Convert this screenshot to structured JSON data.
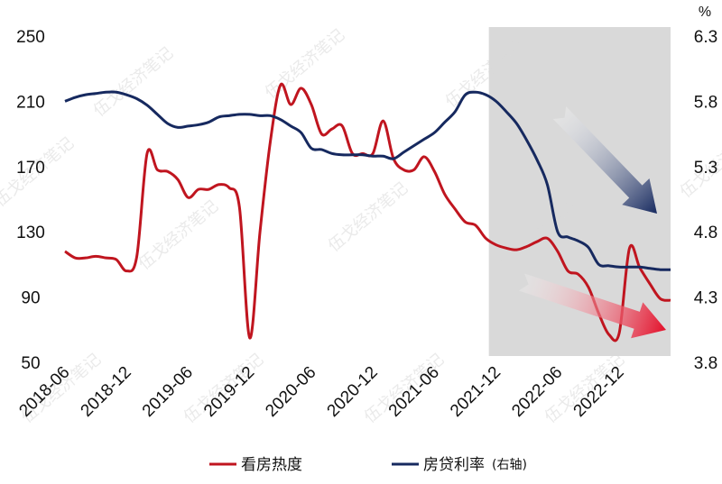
{
  "chart_data": {
    "type": "line",
    "title": "",
    "unit_right": "%",
    "x": [
      "2018-06",
      "2018-07",
      "2018-08",
      "2018-09",
      "2018-10",
      "2018-11",
      "2018-12",
      "2019-01",
      "2019-02",
      "2019-03",
      "2019-04",
      "2019-05",
      "2019-06",
      "2019-07",
      "2019-08",
      "2019-09",
      "2019-10",
      "2019-11",
      "2019-12",
      "2020-01",
      "2020-02",
      "2020-03",
      "2020-04",
      "2020-05",
      "2020-06",
      "2020-07",
      "2020-08",
      "2020-09",
      "2020-10",
      "2020-11",
      "2020-12",
      "2021-01",
      "2021-02",
      "2021-03",
      "2021-04",
      "2021-05",
      "2021-06",
      "2021-07",
      "2021-08",
      "2021-09",
      "2021-10",
      "2021-11",
      "2021-12",
      "2022-01",
      "2022-02",
      "2022-03",
      "2022-04",
      "2022-05",
      "2022-06",
      "2022-07",
      "2022-08",
      "2022-09",
      "2022-10",
      "2022-11",
      "2022-12",
      "2023-01",
      "2023-02",
      "2023-03",
      "2023-04",
      "2023-05"
    ],
    "xtick_labels": [
      "2018-06",
      "2018-12",
      "2019-06",
      "2019-12",
      "2020-06",
      "2020-12",
      "2021-06",
      "2021-12",
      "2022-06",
      "2022-12"
    ],
    "y_left": {
      "ticks": [
        50,
        90,
        130,
        170,
        210,
        250
      ],
      "ylim": [
        50,
        250
      ]
    },
    "y_right": {
      "ticks": [
        3.8,
        4.3,
        4.8,
        5.3,
        5.8,
        6.3
      ],
      "ylim": [
        3.8,
        6.3
      ]
    },
    "series": [
      {
        "name": "看房热度",
        "axis": "left",
        "color": "#c0151f",
        "values": [
          118,
          114,
          114,
          115,
          114,
          113,
          106,
          115,
          178,
          168,
          167,
          162,
          151,
          156,
          156,
          159,
          157,
          145,
          65,
          130,
          185,
          220,
          208,
          218,
          208,
          190,
          193,
          195,
          178,
          178,
          178,
          198,
          175,
          168,
          168,
          176,
          167,
          153,
          144,
          136,
          134,
          126,
          122,
          120,
          119,
          121,
          124,
          126,
          118,
          106,
          104,
          96,
          80,
          67,
          68,
          120,
          108,
          98,
          89,
          88
        ]
      },
      {
        "name": "房贷利率",
        "axis": "right",
        "color": "#16295f",
        "values": [
          5.8,
          5.83,
          5.85,
          5.86,
          5.87,
          5.87,
          5.85,
          5.82,
          5.77,
          5.7,
          5.63,
          5.6,
          5.61,
          5.62,
          5.64,
          5.68,
          5.69,
          5.7,
          5.7,
          5.69,
          5.69,
          5.66,
          5.61,
          5.56,
          5.44,
          5.43,
          5.4,
          5.39,
          5.39,
          5.39,
          5.38,
          5.38,
          5.36,
          5.41,
          5.46,
          5.51,
          5.56,
          5.64,
          5.72,
          5.85,
          5.87,
          5.85,
          5.8,
          5.72,
          5.63,
          5.5,
          5.35,
          5.16,
          4.8,
          4.76,
          4.73,
          4.68,
          4.55,
          4.54,
          4.53,
          4.53,
          4.53,
          4.52,
          4.51,
          4.51
        ]
      }
    ],
    "shaded_region": {
      "from": "2021-12",
      "to": "2023-05",
      "color": "#d9d9d9"
    },
    "annotations": [
      {
        "type": "arrow",
        "color": "#16295f",
        "description": "downward trend arrow on mortgage rate"
      },
      {
        "type": "arrow",
        "color": "#e3102a",
        "description": "downward trend arrow on viewing heat"
      }
    ],
    "legend": {
      "placement": "bottom",
      "entries": [
        {
          "label": "看房热度",
          "color": "#c0151f"
        },
        {
          "label": "房贷利率",
          "note": "(右轴)",
          "color": "#16295f"
        }
      ]
    },
    "watermark": "伍戈经济笔记",
    "grid": false
  }
}
